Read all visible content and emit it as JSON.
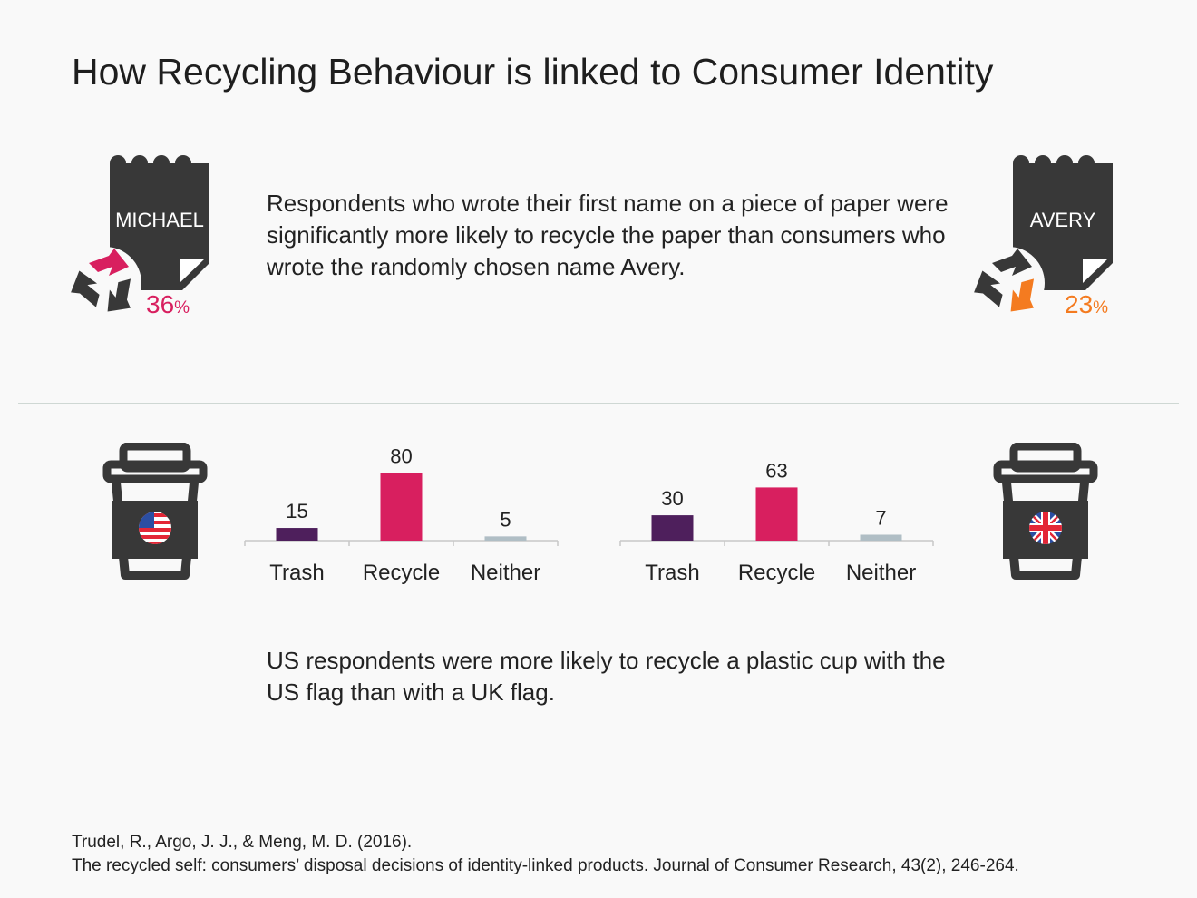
{
  "title": "How Recycling Behaviour is linked to Consumer Identity",
  "colors": {
    "dark": "#383838",
    "pink": "#d81f5f",
    "orange": "#f47b20",
    "purple": "#4e1f5c",
    "gray": "#b0bec5",
    "background": "#f9f9f9"
  },
  "name_study": {
    "left": {
      "name": "MICHAEL",
      "percent": "36",
      "unit": "%",
      "color": "#d81f5f",
      "icon": "recycle-icon"
    },
    "right": {
      "name": "AVERY",
      "percent": "23",
      "unit": "%",
      "color": "#f47b20",
      "icon": "recycle-icon"
    },
    "text": "Respondents who wrote their first name on a piece of paper were significantly more likely to recycle the paper than consumers who wrote the randomly chosen name Avery."
  },
  "cup_study": {
    "left_icon": "coffee-cup-us-flag-icon",
    "right_icon": "coffee-cup-uk-flag-icon",
    "text": "US respondents were more likely to recycle a plastic cup with the US flag than with a UK flag."
  },
  "chart_data": [
    {
      "type": "bar",
      "categories": [
        "Trash",
        "Recycle",
        "Neither"
      ],
      "values": [
        15,
        80,
        5
      ],
      "value_labels": [
        "15",
        "80",
        "5"
      ],
      "colors": [
        "#4e1f5c",
        "#d81f5f",
        "#b0bec5"
      ],
      "ylim": [
        0,
        100
      ],
      "grid": false
    },
    {
      "type": "bar",
      "categories": [
        "Trash",
        "Recycle",
        "Neither"
      ],
      "values": [
        30,
        63,
        7
      ],
      "value_labels": [
        "30",
        "63",
        "7"
      ],
      "colors": [
        "#4e1f5c",
        "#d81f5f",
        "#b0bec5"
      ],
      "ylim": [
        0,
        100
      ],
      "grid": false
    }
  ],
  "reference": {
    "line1": "Trudel, R., Argo, J. J., & Meng, M. D. (2016).",
    "line2": "The recycled self: consumers’ disposal decisions of identity-linked products. Journal of Consumer Research, 43(2), 246-264."
  }
}
